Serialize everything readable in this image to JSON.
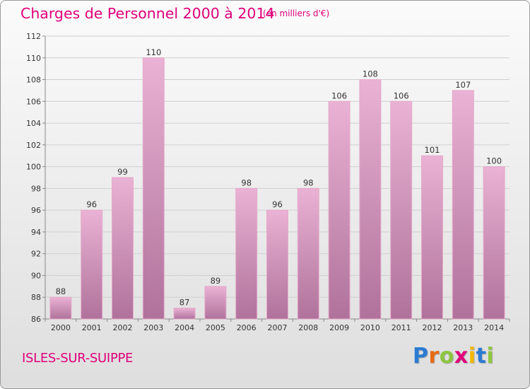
{
  "title": "Charges de Personnel 2000 à 2014",
  "subtitle": "(en milliers d'€)",
  "commune": "ISLES-SUR-SUIPPE",
  "logo_text": "Proxiti",
  "colors": {
    "title": "#e0007a",
    "bar_light": "#eab2d4",
    "bar_dark": "#b0729b",
    "logo": [
      "#2b7bd3",
      "#e86a10",
      "#8cc63f",
      "#e0007a",
      "#f5b800",
      "#2b7bd3",
      "#8cc63f"
    ]
  },
  "chart_data": {
    "type": "bar",
    "categories": [
      "2000",
      "2001",
      "2002",
      "2003",
      "2004",
      "2005",
      "2006",
      "2007",
      "2008",
      "2009",
      "2010",
      "2011",
      "2012",
      "2013",
      "2014"
    ],
    "values": [
      88,
      96,
      99,
      110,
      87,
      89,
      98,
      96,
      98,
      106,
      108,
      106,
      101,
      107,
      100
    ],
    "data_labels": [
      "88",
      "96",
      "99",
      "110",
      "87",
      "89",
      "98",
      "96",
      "98",
      "106",
      "108",
      "106",
      "101",
      "107",
      "100"
    ],
    "ylim": [
      86,
      112
    ],
    "yticks": [
      86,
      88,
      90,
      92,
      94,
      96,
      98,
      100,
      102,
      104,
      106,
      108,
      110,
      112
    ],
    "grid": true,
    "xlabel": "",
    "ylabel": ""
  }
}
